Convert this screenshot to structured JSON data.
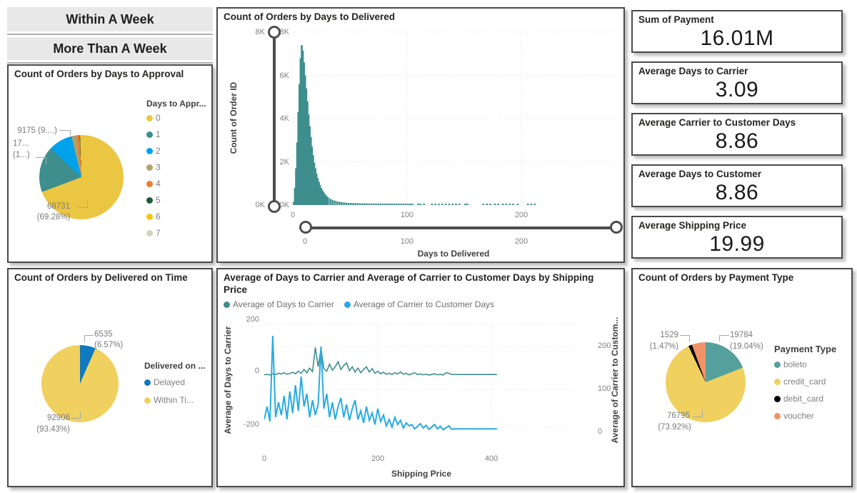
{
  "buttons": [
    {
      "label": "Within A Week"
    },
    {
      "label": "More Than A Week"
    }
  ],
  "cards": [
    {
      "label": "Sum of Payment",
      "value": "16.01M"
    },
    {
      "label": "Average Days to Carrier",
      "value": "3.09"
    },
    {
      "label": "Average Carrier to Customer Days",
      "value": "8.86"
    },
    {
      "label": "Average Days to Customer",
      "value": "8.86"
    },
    {
      "label": "Average Shipping Price",
      "value": "19.99"
    }
  ],
  "chart_data": [
    {
      "id": "approval_pie",
      "type": "pie",
      "title": "Count of Orders by Days to Approval",
      "legend_title": "Days to Appr...",
      "legend_position": "right",
      "categories": [
        "0",
        "1",
        "2",
        "3",
        "4",
        "5",
        "6",
        "7"
      ],
      "values": [
        68731,
        17530,
        9175,
        1885,
        1190,
        198,
        397,
        99
      ],
      "colors": [
        "#EAC643",
        "#3F8E8E",
        "#00A2EC",
        "#B3A068",
        "#ED7D31",
        "#1E5B32",
        "#F2C80F",
        "#D6D1BC"
      ],
      "callouts": [
        {
          "line1": "9175 (9....)",
          "line2": ""
        },
        {
          "line1": "17...",
          "line2": "(1...)"
        },
        {
          "line1": "68731",
          "line2": "(69.28%)"
        }
      ]
    },
    {
      "id": "delivered_histogram",
      "type": "bar",
      "title": "Count of Orders by Days to Delivered",
      "xlabel": "Days to Delivered",
      "ylabel": "Count of Order ID",
      "bar_color": "#3F8E8E",
      "ylim": [
        0,
        8000
      ],
      "xlim": [
        0,
        283
      ],
      "grid": true,
      "y_ticks": [
        "0K",
        "2K",
        "4K",
        "6K",
        "8K"
      ],
      "x_ticks": [
        "0",
        "100",
        "200"
      ],
      "slider_y_labels": [
        "8K",
        "0K"
      ],
      "slider_x_labels": [
        "0",
        "100",
        "200"
      ],
      "points": [
        [
          0,
          150
        ],
        [
          1,
          800
        ],
        [
          2,
          1700
        ],
        [
          3,
          2900
        ],
        [
          4,
          4300
        ],
        [
          5,
          5600
        ],
        [
          6,
          6800
        ],
        [
          7,
          7400
        ],
        [
          8,
          7150
        ],
        [
          9,
          6600
        ],
        [
          10,
          6000
        ],
        [
          11,
          5400
        ],
        [
          12,
          4800
        ],
        [
          13,
          4200
        ],
        [
          14,
          3650
        ],
        [
          15,
          3150
        ],
        [
          16,
          2700
        ],
        [
          17,
          2300
        ],
        [
          18,
          1950
        ],
        [
          19,
          1700
        ],
        [
          20,
          1450
        ],
        [
          21,
          1250
        ],
        [
          22,
          1080
        ],
        [
          23,
          930
        ],
        [
          24,
          800
        ],
        [
          25,
          700
        ],
        [
          26,
          610
        ],
        [
          27,
          530
        ],
        [
          28,
          460
        ],
        [
          29,
          400
        ],
        [
          30,
          360
        ],
        [
          32,
          290
        ],
        [
          34,
          240
        ],
        [
          36,
          200
        ],
        [
          38,
          175
        ],
        [
          40,
          150
        ],
        [
          42,
          135
        ],
        [
          44,
          120
        ],
        [
          46,
          110
        ],
        [
          48,
          100
        ],
        [
          50,
          95
        ],
        [
          52,
          90
        ],
        [
          54,
          88
        ],
        [
          56,
          85
        ],
        [
          58,
          82
        ],
        [
          60,
          80
        ],
        [
          62,
          78
        ],
        [
          64,
          76
        ],
        [
          66,
          75
        ],
        [
          68,
          74
        ],
        [
          70,
          73
        ],
        [
          72,
          72
        ],
        [
          74,
          71
        ],
        [
          76,
          70
        ],
        [
          78,
          70
        ],
        [
          80,
          70
        ],
        [
          82,
          69
        ],
        [
          84,
          68
        ],
        [
          86,
          68
        ],
        [
          88,
          67
        ],
        [
          90,
          67
        ],
        [
          92,
          66
        ],
        [
          94,
          66
        ],
        [
          96,
          65
        ],
        [
          98,
          65
        ],
        [
          100,
          65
        ],
        [
          102,
          65
        ],
        [
          104,
          64
        ],
        [
          109,
          64
        ],
        [
          111,
          63
        ],
        [
          114,
          63
        ],
        [
          121,
          63
        ],
        [
          124,
          62
        ],
        [
          127,
          62
        ],
        [
          130,
          62
        ],
        [
          133,
          62
        ],
        [
          136,
          61
        ],
        [
          139,
          61
        ],
        [
          142,
          61
        ],
        [
          145,
          61
        ],
        [
          150,
          60
        ],
        [
          152,
          60
        ],
        [
          166,
          60
        ],
        [
          169,
          60
        ],
        [
          172,
          60
        ],
        [
          176,
          59
        ],
        [
          179,
          59
        ],
        [
          183,
          59
        ],
        [
          186,
          59
        ],
        [
          189,
          58
        ],
        [
          192,
          58
        ],
        [
          196,
          58
        ],
        [
          205,
          58
        ],
        [
          208,
          57
        ],
        [
          211,
          57
        ]
      ]
    },
    {
      "id": "ontime_pie",
      "type": "pie",
      "title": "Count of Orders by Delivered on Time",
      "legend_title": "Delivered on ...",
      "legend_position": "right",
      "categories": [
        "Delayed",
        "Within Ti..."
      ],
      "values": [
        6535,
        92906
      ],
      "colors": [
        "#1079BF",
        "#F0D05E"
      ],
      "callouts": [
        {
          "line1": "6535",
          "line2": "(6.57%)"
        },
        {
          "line1": "92906",
          "line2": "(93.43%)"
        }
      ]
    },
    {
      "id": "shipping_lines",
      "type": "line",
      "title": "Average of Days to Carrier and Average of Carrier to Customer Days by Shipping Price",
      "xlabel": "Shipping Price",
      "ylabel_left": "Average of Days to Carrier",
      "ylabel_right": "Average of Carrier to Custom...",
      "legend": [
        "Average of Days to Carrier",
        "Average of Carrier to Customer Days"
      ],
      "left_ticks": [
        "200",
        "0",
        "-200"
      ],
      "right_ticks": [
        "200",
        "100",
        "0"
      ],
      "x_ticks": [
        "0",
        "200",
        "400"
      ],
      "left_ylim": [
        -200,
        200
      ],
      "right_ylim": [
        0,
        200
      ],
      "xlim": [
        0,
        440
      ],
      "grid": true,
      "x_start": 0,
      "x_step": 5,
      "series": [
        {
          "name": "Average of Days to Carrier",
          "axis": "left",
          "color": "#3F8E8E",
          "values": [
            4,
            6,
            3,
            8,
            5,
            10,
            7,
            12,
            6,
            9,
            14,
            8,
            18,
            10,
            25,
            12,
            30,
            16,
            110,
            35,
            105,
            28,
            18,
            45,
            22,
            35,
            55,
            25,
            40,
            50,
            20,
            35,
            15,
            30,
            12,
            25,
            35,
            15,
            28,
            10,
            18,
            8,
            14,
            6,
            10,
            5,
            12,
            7,
            15,
            6,
            10,
            4,
            8,
            12,
            5,
            7,
            4,
            6,
            3,
            5,
            8,
            4,
            6,
            3,
            12,
            10,
            5,
            5,
            5,
            5,
            5,
            5,
            5,
            5,
            5,
            5,
            5,
            5,
            5,
            5,
            5,
            5,
            5
          ]
        },
        {
          "name": "Average of Carrier to Customer Days",
          "axis": "right",
          "color": "#29ABE2",
          "values": [
            30,
            60,
            25,
            225,
            35,
            70,
            40,
            85,
            30,
            95,
            45,
            110,
            50,
            130,
            60,
            90,
            35,
            75,
            40,
            65,
            200,
            55,
            90,
            35,
            70,
            30,
            60,
            80,
            35,
            65,
            28,
            55,
            75,
            30,
            50,
            22,
            60,
            28,
            45,
            18,
            55,
            25,
            40,
            15,
            30,
            12,
            35,
            18,
            28,
            10,
            22,
            15,
            18,
            8,
            14,
            20,
            10,
            16,
            7,
            12,
            18,
            8,
            14,
            6,
            10,
            15,
            7,
            8,
            8,
            8,
            8,
            8,
            8,
            8,
            8,
            8,
            8,
            8,
            8,
            8,
            8,
            8,
            8
          ]
        }
      ]
    },
    {
      "id": "payment_pie",
      "type": "pie",
      "title": "Count of Orders by Payment Type",
      "legend_title": "Payment Type",
      "legend_position": "right",
      "categories": [
        "boleto",
        "credit_card",
        "debit_card",
        "voucher"
      ],
      "values": [
        19784,
        76795,
        1529,
        5786
      ],
      "colors": [
        "#55A09D",
        "#F0D05E",
        "#000000",
        "#F09368"
      ],
      "callouts": [
        {
          "line1": "1529",
          "line2": "(1.47%)"
        },
        {
          "line1": "19784",
          "line2": "(19.04%)"
        },
        {
          "line1": "76795",
          "line2": "(73.92%)"
        }
      ]
    }
  ]
}
